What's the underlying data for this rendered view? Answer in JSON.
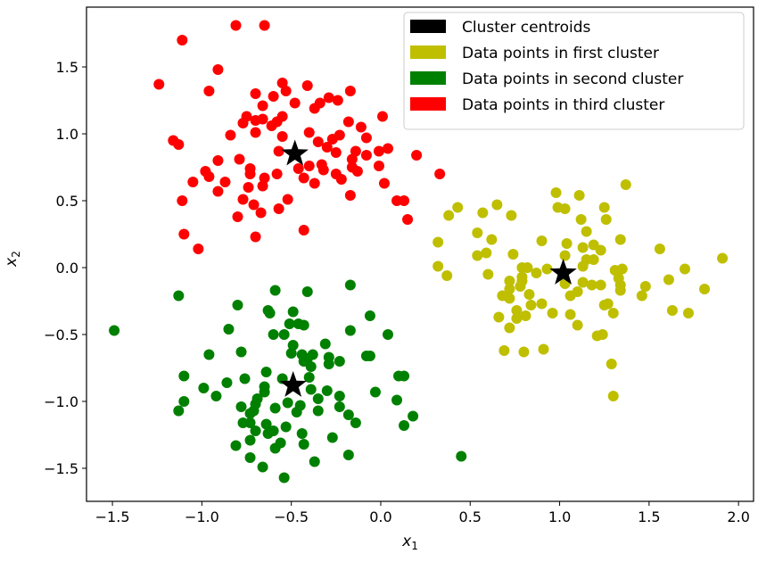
{
  "chart_data": {
    "type": "scatter",
    "xlabel": "x",
    "xlabel_sub": "1",
    "ylabel": "x",
    "ylabel_sub": "2",
    "xlim": [
      -1.645,
      2.084
    ],
    "ylim": [
      -1.747,
      1.947
    ],
    "grid": false,
    "legend_placement": "top-right",
    "xticks": [
      -1.5,
      -1.0,
      -0.5,
      0.0,
      0.5,
      1.0,
      1.5,
      2.0
    ],
    "xtick_labels": [
      "−1.5",
      "−1.0",
      "−0.5",
      "0.0",
      "0.5",
      "1.0",
      "1.5",
      "2.0"
    ],
    "yticks": [
      -1.5,
      -1.0,
      -0.5,
      0.0,
      0.5,
      1.0,
      1.5
    ],
    "ytick_labels": [
      "−1.5",
      "−1.0",
      "−0.5",
      "0.0",
      "0.5",
      "1.0",
      "1.5"
    ],
    "legend": [
      {
        "label": "Cluster centroids",
        "color": "#000000"
      },
      {
        "label": "Data points in first cluster",
        "color": "#bfbf00"
      },
      {
        "label": "Data points in second cluster",
        "color": "#008000"
      },
      {
        "label": "Data points in third cluster",
        "color": "#ff0000"
      }
    ],
    "series": [
      {
        "name": "Data points in first cluster",
        "color": "#bfbf00",
        "points": [
          [
            1.37,
            0.62
          ],
          [
            0.98,
            0.56
          ],
          [
            1.11,
            0.54
          ],
          [
            0.99,
            0.45
          ],
          [
            1.03,
            0.44
          ],
          [
            1.25,
            0.45
          ],
          [
            1.26,
            0.36
          ],
          [
            1.12,
            0.36
          ],
          [
            0.43,
            0.45
          ],
          [
            0.38,
            0.39
          ],
          [
            0.57,
            0.41
          ],
          [
            0.65,
            0.47
          ],
          [
            0.73,
            0.39
          ],
          [
            0.54,
            0.26
          ],
          [
            0.62,
            0.21
          ],
          [
            0.32,
            0.19
          ],
          [
            0.32,
            0.01
          ],
          [
            0.37,
            -0.06
          ],
          [
            0.54,
            0.09
          ],
          [
            0.59,
            0.11
          ],
          [
            0.74,
            0.1
          ],
          [
            0.6,
            -0.05
          ],
          [
            0.9,
            0.2
          ],
          [
            1.04,
            0.18
          ],
          [
            1.15,
            0.27
          ],
          [
            1.13,
            0.15
          ],
          [
            1.19,
            0.17
          ],
          [
            1.23,
            0.13
          ],
          [
            1.34,
            0.21
          ],
          [
            1.56,
            0.14
          ],
          [
            1.91,
            0.07
          ],
          [
            1.03,
            0.09
          ],
          [
            1.19,
            0.06
          ],
          [
            1.15,
            0.06
          ],
          [
            1.13,
            0.01
          ],
          [
            0.79,
            0.0
          ],
          [
            0.82,
            0.0
          ],
          [
            0.93,
            -0.01
          ],
          [
            0.87,
            -0.04
          ],
          [
            0.79,
            -0.07
          ],
          [
            0.79,
            -0.1
          ],
          [
            0.72,
            -0.1
          ],
          [
            0.72,
            -0.16
          ],
          [
            0.78,
            -0.14
          ],
          [
            0.68,
            -0.21
          ],
          [
            0.72,
            -0.23
          ],
          [
            0.83,
            -0.2
          ],
          [
            0.84,
            -0.28
          ],
          [
            0.9,
            -0.27
          ],
          [
            1.03,
            -0.12
          ],
          [
            1.13,
            -0.11
          ],
          [
            1.18,
            -0.13
          ],
          [
            1.23,
            -0.13
          ],
          [
            1.06,
            -0.21
          ],
          [
            1.1,
            -0.18
          ],
          [
            1.31,
            -0.02
          ],
          [
            1.35,
            -0.01
          ],
          [
            1.33,
            -0.08
          ],
          [
            1.34,
            -0.13
          ],
          [
            1.34,
            -0.17
          ],
          [
            1.48,
            -0.14
          ],
          [
            1.46,
            -0.21
          ],
          [
            1.61,
            -0.09
          ],
          [
            1.7,
            -0.01
          ],
          [
            1.81,
            -0.16
          ],
          [
            1.63,
            -0.32
          ],
          [
            1.72,
            -0.34
          ],
          [
            1.25,
            -0.28
          ],
          [
            1.27,
            -0.27
          ],
          [
            1.3,
            -0.34
          ],
          [
            0.66,
            -0.37
          ],
          [
            0.76,
            -0.32
          ],
          [
            0.76,
            -0.38
          ],
          [
            0.81,
            -0.36
          ],
          [
            0.96,
            -0.34
          ],
          [
            1.06,
            -0.35
          ],
          [
            1.1,
            -0.43
          ],
          [
            0.72,
            -0.45
          ],
          [
            1.21,
            -0.51
          ],
          [
            1.24,
            -0.5
          ],
          [
            0.69,
            -0.62
          ],
          [
            0.8,
            -0.63
          ],
          [
            0.91,
            -0.61
          ],
          [
            1.29,
            -0.72
          ],
          [
            1.3,
            -0.96
          ]
        ]
      },
      {
        "name": "Data points in second cluster",
        "color": "#008000",
        "points": [
          [
            -1.13,
            -0.21
          ],
          [
            -0.59,
            -0.17
          ],
          [
            -0.41,
            -0.18
          ],
          [
            -0.17,
            -0.13
          ],
          [
            -0.8,
            -0.28
          ],
          [
            -0.63,
            -0.32
          ],
          [
            -0.62,
            -0.34
          ],
          [
            -0.49,
            -0.33
          ],
          [
            -0.06,
            -0.36
          ],
          [
            -1.49,
            -0.47
          ],
          [
            -0.85,
            -0.46
          ],
          [
            -0.51,
            -0.42
          ],
          [
            -0.46,
            -0.42
          ],
          [
            -0.43,
            -0.43
          ],
          [
            -0.17,
            -0.47
          ],
          [
            0.04,
            -0.5
          ],
          [
            -0.6,
            -0.5
          ],
          [
            -0.54,
            -0.5
          ],
          [
            -0.49,
            -0.58
          ],
          [
            -0.31,
            -0.57
          ],
          [
            -0.96,
            -0.65
          ],
          [
            -0.78,
            -0.63
          ],
          [
            -0.5,
            -0.64
          ],
          [
            -0.44,
            -0.65
          ],
          [
            -0.38,
            -0.65
          ],
          [
            -0.41,
            -0.68
          ],
          [
            -0.43,
            -0.7
          ],
          [
            -0.29,
            -0.67
          ],
          [
            -0.29,
            -0.72
          ],
          [
            -0.23,
            -0.7
          ],
          [
            -0.39,
            -0.74
          ],
          [
            -0.08,
            -0.66
          ],
          [
            -0.06,
            -0.66
          ],
          [
            -1.1,
            -0.81
          ],
          [
            -0.76,
            -0.83
          ],
          [
            -0.64,
            -0.78
          ],
          [
            -0.55,
            -0.83
          ],
          [
            -0.4,
            -0.82
          ],
          [
            0.1,
            -0.81
          ],
          [
            0.13,
            -0.81
          ],
          [
            -0.99,
            -0.9
          ],
          [
            -0.86,
            -0.86
          ],
          [
            -0.92,
            -0.96
          ],
          [
            -0.65,
            -0.89
          ],
          [
            -0.65,
            -0.93
          ],
          [
            -0.39,
            -0.91
          ],
          [
            -0.3,
            -0.92
          ],
          [
            -0.35,
            -0.98
          ],
          [
            -0.23,
            -0.96
          ],
          [
            -0.23,
            -1.04
          ],
          [
            -0.03,
            -0.93
          ],
          [
            0.09,
            -0.99
          ],
          [
            -1.1,
            -1.0
          ],
          [
            -1.13,
            -1.07
          ],
          [
            -0.69,
            -0.98
          ],
          [
            -0.7,
            -1.02
          ],
          [
            -0.78,
            -1.04
          ],
          [
            -0.71,
            -1.07
          ],
          [
            -0.73,
            -1.09
          ],
          [
            -0.59,
            -1.05
          ],
          [
            -0.52,
            -1.01
          ],
          [
            -0.45,
            -1.03
          ],
          [
            -0.47,
            -1.08
          ],
          [
            -0.35,
            -1.07
          ],
          [
            -0.18,
            -1.1
          ],
          [
            -0.14,
            -1.16
          ],
          [
            0.18,
            -1.11
          ],
          [
            0.13,
            -1.18
          ],
          [
            -0.77,
            -1.16
          ],
          [
            -0.73,
            -1.16
          ],
          [
            -0.7,
            -1.22
          ],
          [
            -0.64,
            -1.17
          ],
          [
            -0.63,
            -1.24
          ],
          [
            -0.6,
            -1.22
          ],
          [
            -0.53,
            -1.19
          ],
          [
            -0.44,
            -1.24
          ],
          [
            -0.43,
            -1.32
          ],
          [
            -0.27,
            -1.27
          ],
          [
            -0.81,
            -1.33
          ],
          [
            -0.73,
            -1.29
          ],
          [
            -0.56,
            -1.31
          ],
          [
            -0.59,
            -1.35
          ],
          [
            -0.73,
            -1.42
          ],
          [
            -0.37,
            -1.45
          ],
          [
            -0.18,
            -1.4
          ],
          [
            0.45,
            -1.41
          ],
          [
            -0.66,
            -1.49
          ],
          [
            -0.54,
            -1.57
          ]
        ]
      },
      {
        "name": "Data points in third cluster",
        "color": "#ff0000",
        "points": [
          [
            -0.81,
            1.81
          ],
          [
            -0.65,
            1.81
          ],
          [
            -1.11,
            1.7
          ],
          [
            -0.91,
            1.48
          ],
          [
            -1.24,
            1.37
          ],
          [
            -0.96,
            1.32
          ],
          [
            -0.55,
            1.38
          ],
          [
            -0.53,
            1.32
          ],
          [
            -0.41,
            1.36
          ],
          [
            -0.7,
            1.3
          ],
          [
            -0.6,
            1.28
          ],
          [
            -0.48,
            1.23
          ],
          [
            -0.66,
            1.21
          ],
          [
            -0.34,
            1.23
          ],
          [
            -0.37,
            1.19
          ],
          [
            -0.29,
            1.27
          ],
          [
            -0.24,
            1.25
          ],
          [
            -0.17,
            1.32
          ],
          [
            0.01,
            1.13
          ],
          [
            -0.75,
            1.13
          ],
          [
            -0.77,
            1.08
          ],
          [
            -0.7,
            1.1
          ],
          [
            -0.66,
            1.11
          ],
          [
            -0.55,
            1.13
          ],
          [
            -0.58,
            1.09
          ],
          [
            -0.61,
            1.06
          ],
          [
            -0.18,
            1.09
          ],
          [
            -0.11,
            1.05
          ],
          [
            -0.08,
            0.97
          ],
          [
            -0.84,
            0.99
          ],
          [
            -0.7,
            1.01
          ],
          [
            -1.16,
            0.95
          ],
          [
            -1.13,
            0.92
          ],
          [
            -0.55,
            0.98
          ],
          [
            -0.4,
            1.01
          ],
          [
            -0.35,
            0.94
          ],
          [
            -0.27,
            0.96
          ],
          [
            -0.23,
            0.99
          ],
          [
            -0.3,
            0.9
          ],
          [
            -0.25,
            0.86
          ],
          [
            -0.14,
            0.87
          ],
          [
            -0.08,
            0.84
          ],
          [
            -0.01,
            0.87
          ],
          [
            0.04,
            0.89
          ],
          [
            0.2,
            0.84
          ],
          [
            -0.16,
            0.81
          ],
          [
            -0.57,
            0.87
          ],
          [
            -0.79,
            0.81
          ],
          [
            -0.91,
            0.8
          ],
          [
            -0.98,
            0.72
          ],
          [
            -0.96,
            0.68
          ],
          [
            -1.05,
            0.64
          ],
          [
            -0.87,
            0.64
          ],
          [
            -0.91,
            0.57
          ],
          [
            -0.73,
            0.74
          ],
          [
            -0.73,
            0.7
          ],
          [
            -0.65,
            0.67
          ],
          [
            -0.74,
            0.6
          ],
          [
            -0.66,
            0.61
          ],
          [
            -0.58,
            0.7
          ],
          [
            -0.46,
            0.74
          ],
          [
            -0.4,
            0.76
          ],
          [
            -0.43,
            0.67
          ],
          [
            -0.37,
            0.63
          ],
          [
            -0.33,
            0.77
          ],
          [
            -0.32,
            0.73
          ],
          [
            -0.25,
            0.7
          ],
          [
            -0.22,
            0.66
          ],
          [
            -0.16,
            0.75
          ],
          [
            -0.13,
            0.72
          ],
          [
            -0.01,
            0.76
          ],
          [
            0.02,
            0.63
          ],
          [
            0.33,
            0.7
          ],
          [
            -0.17,
            0.54
          ],
          [
            0.09,
            0.5
          ],
          [
            0.13,
            0.5
          ],
          [
            0.15,
            0.36
          ],
          [
            -1.11,
            0.5
          ],
          [
            -0.77,
            0.51
          ],
          [
            -0.71,
            0.47
          ],
          [
            -0.52,
            0.51
          ],
          [
            -0.67,
            0.41
          ],
          [
            -0.57,
            0.44
          ],
          [
            -0.8,
            0.38
          ],
          [
            -1.1,
            0.25
          ],
          [
            -0.7,
            0.23
          ],
          [
            -0.43,
            0.28
          ],
          [
            -1.02,
            0.14
          ]
        ]
      }
    ],
    "centroids": {
      "name": "Cluster centroids",
      "color": "#000000",
      "points": [
        [
          -0.48,
          0.85
        ],
        [
          -0.49,
          -0.88
        ],
        [
          1.02,
          -0.04
        ]
      ]
    }
  }
}
